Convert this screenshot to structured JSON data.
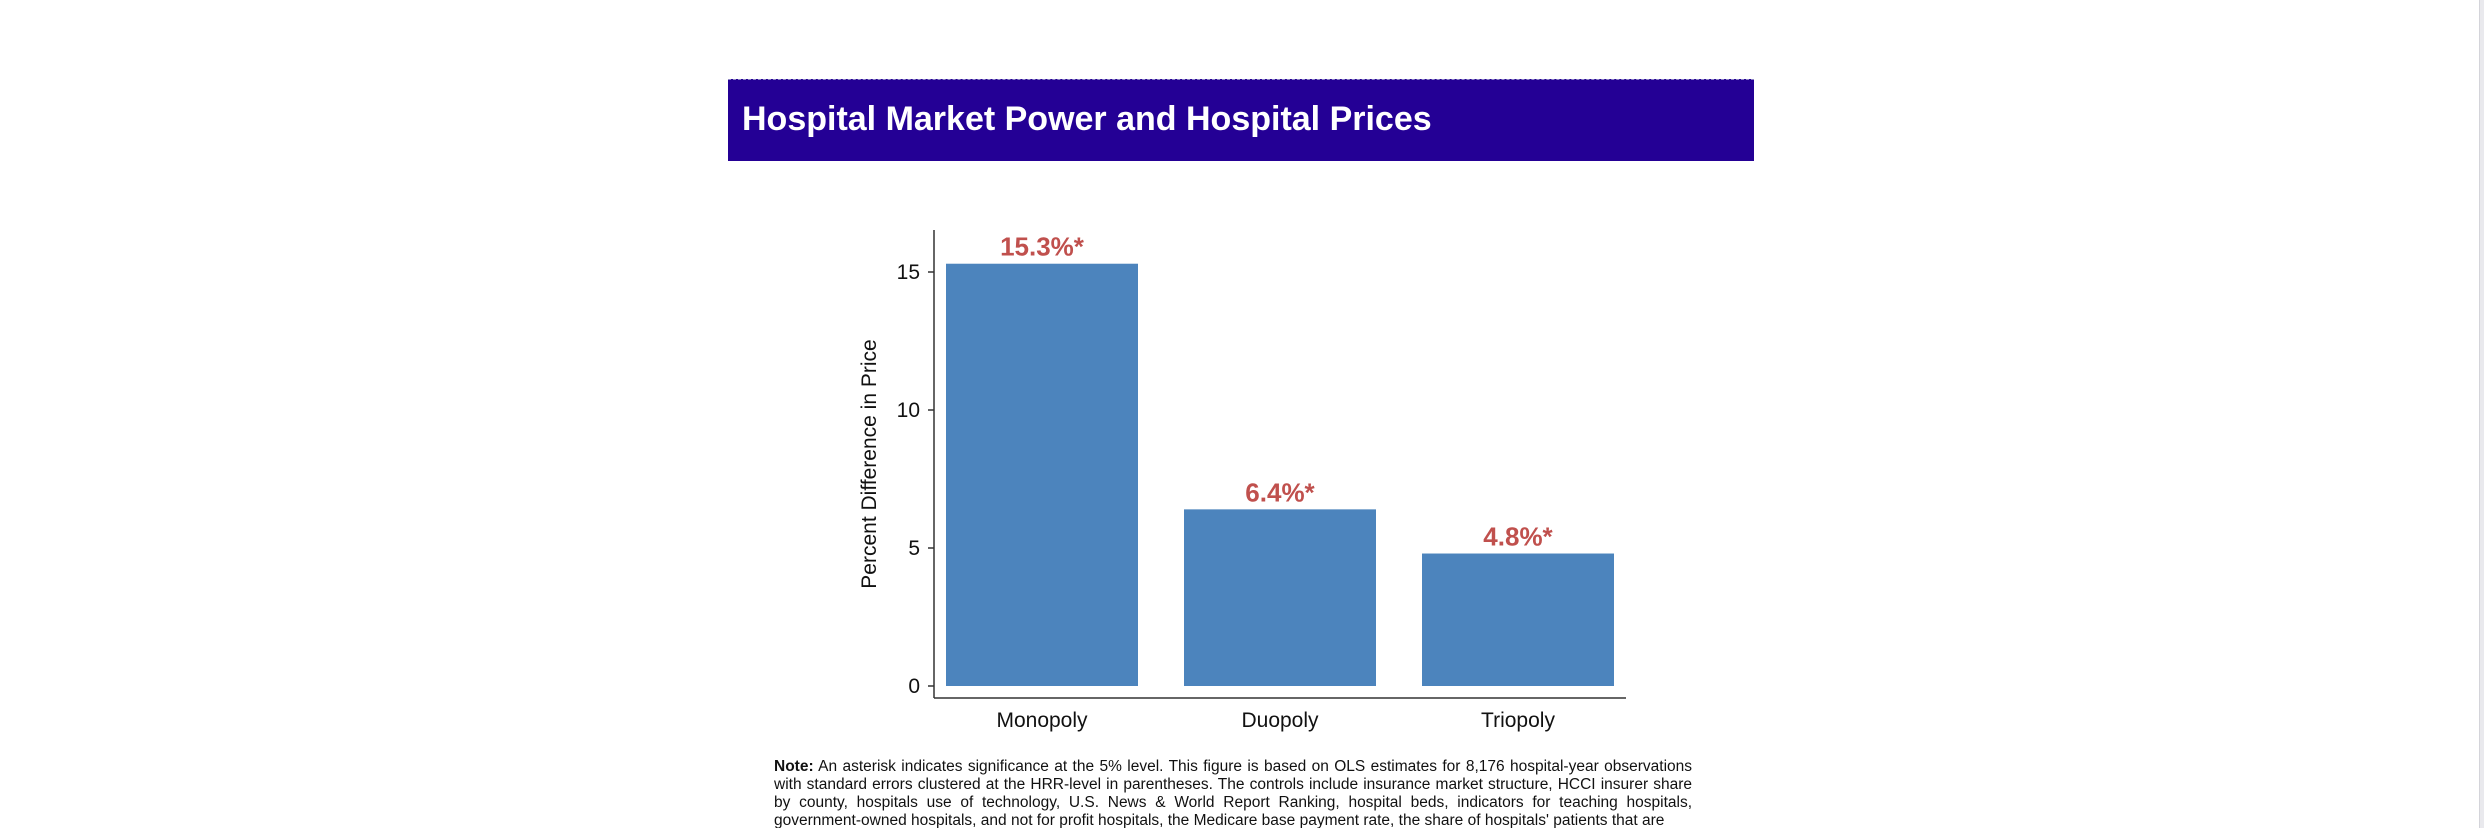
{
  "page": {
    "title": "Hospital Market Power and Hospital Prices"
  },
  "chart_data": {
    "type": "bar",
    "title": "",
    "xlabel": "",
    "ylabel": "Percent Difference in Price",
    "categories": [
      "Monopoly",
      "Duopoly",
      "Triopoly"
    ],
    "values": [
      15.3,
      6.4,
      4.8
    ],
    "data_labels": [
      "15.3%*",
      "6.4%*",
      "4.8%*"
    ],
    "ylim": [
      0,
      16
    ],
    "yticks": [
      0,
      5,
      10,
      15
    ],
    "bar_color": "#4c84bd",
    "label_color": "#c0504d",
    "grid": false,
    "legend": "none"
  },
  "note": {
    "label": "Note:",
    "text": "An asterisk indicates significance at the 5% level. This figure is based on OLS estimates for 8,176 hospital-year observations with standard errors clustered at the HRR-level in parentheses. The controls include insurance market structure, HCCI insurer share by county, hospitals use of technology, U.S. News & World Report Ranking, hospital beds, indicators for teaching hospitals, government-owned hospitals, and not for profit hospitals, the Medicare base payment rate, the share of hospitals' patients that are"
  }
}
